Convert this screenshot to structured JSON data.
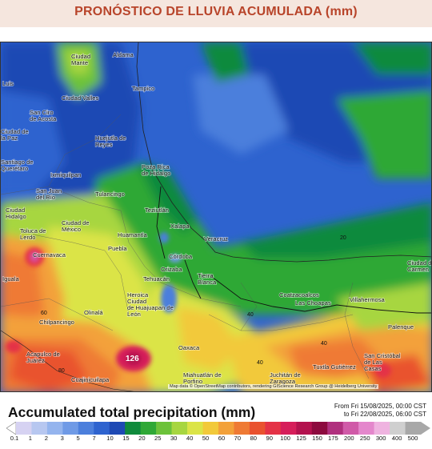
{
  "header": {
    "title": "PRONÓSTICO DE LLUVIA ACUMULADA (mm)"
  },
  "map": {
    "cities": [
      {
        "name": "Aldama"
      },
      {
        "name": "Ciudad Mante"
      },
      {
        "name": "Tampico"
      },
      {
        "name": "Luis"
      },
      {
        "name": "Ciudad Valles"
      },
      {
        "name": "San Ciro de Acosta"
      },
      {
        "name": "Ciudad de la Paz"
      },
      {
        "name": "Huejutla de Reyes"
      },
      {
        "name": "Santiago de Querétaro"
      },
      {
        "name": "Ixmiquilpan"
      },
      {
        "name": "Poza Rica de Hidalgo"
      },
      {
        "name": "San Juan del Río"
      },
      {
        "name": "Tulancingo"
      },
      {
        "name": "Ciudad Hidalgo"
      },
      {
        "name": "Teziutlán"
      },
      {
        "name": "Ciudad de México"
      },
      {
        "name": "Xalapa"
      },
      {
        "name": "Toluca de Lerdo"
      },
      {
        "name": "Huamantla"
      },
      {
        "name": "Veracruz"
      },
      {
        "name": "Cuernavaca"
      },
      {
        "name": "Puebla"
      },
      {
        "name": "Córdoba"
      },
      {
        "name": "Orizaba"
      },
      {
        "name": "Tierra Blanca"
      },
      {
        "name": "Iguala"
      },
      {
        "name": "Tehuacán"
      },
      {
        "name": "Coatzacoalcos"
      },
      {
        "name": "Las Choapas"
      },
      {
        "name": "Ciudad del Carmen"
      },
      {
        "name": "Heroica Ciudad de Huajuapan de León"
      },
      {
        "name": "Villahermosa"
      },
      {
        "name": "Olinalá"
      },
      {
        "name": "Chilpancingo"
      },
      {
        "name": "Palenque"
      },
      {
        "name": "Acapulco de Juárez"
      },
      {
        "name": "Oaxaca"
      },
      {
        "name": "San Cristóbal de Las Casas"
      },
      {
        "name": "Tuxtla Gutiérrez"
      },
      {
        "name": "Cuajinicuilapa"
      },
      {
        "name": "Miahuatlán de Porfirio"
      },
      {
        "name": "Juchitán de Zaragoza"
      }
    ],
    "contour_labels": [
      {
        "text": "20"
      },
      {
        "text": "40"
      },
      {
        "text": "40"
      },
      {
        "text": "40"
      },
      {
        "text": "60"
      },
      {
        "text": "80"
      },
      {
        "text": "126"
      }
    ],
    "attribution": "Map data © OpenStreetMap contributors, rendering GIScience Research Group @ Heidelberg University"
  },
  "legend": {
    "title": "Accumulated total precipitation (mm)",
    "valid_from": "From Fri 15/08/2025, 00:00 CST",
    "valid_to": "to Fri 22/08/2025, 06:00 CST",
    "bins": [
      {
        "label": "0.1",
        "color": "#d6d2f2"
      },
      {
        "label": "1",
        "color": "#b7c7f0"
      },
      {
        "label": "2",
        "color": "#94b4ee"
      },
      {
        "label": "3",
        "color": "#6f9ae6"
      },
      {
        "label": "5",
        "color": "#4c7fdc"
      },
      {
        "label": "7",
        "color": "#2e63cf"
      },
      {
        "label": "10",
        "color": "#1e49b4"
      },
      {
        "label": "15",
        "color": "#0f8a3c"
      },
      {
        "label": "20",
        "color": "#2fa836"
      },
      {
        "label": "25",
        "color": "#6cc23a"
      },
      {
        "label": "30",
        "color": "#a7d640"
      },
      {
        "label": "40",
        "color": "#dbe447"
      },
      {
        "label": "50",
        "color": "#f2c93a"
      },
      {
        "label": "60",
        "color": "#f3a13a"
      },
      {
        "label": "70",
        "color": "#ef7a34"
      },
      {
        "label": "80",
        "color": "#e9522f"
      },
      {
        "label": "90",
        "color": "#e43246"
      },
      {
        "label": "100",
        "color": "#d61e5a"
      },
      {
        "label": "125",
        "color": "#b3124e"
      },
      {
        "label": "150",
        "color": "#8c0a3e"
      },
      {
        "label": "175",
        "color": "#b0307e"
      },
      {
        "label": "200",
        "color": "#d05aa8"
      },
      {
        "label": "250",
        "color": "#e487cc"
      },
      {
        "label": "300",
        "color": "#efb3e0"
      },
      {
        "label": "400",
        "color": "#cfcfcf"
      },
      {
        "label": "500",
        "color": "#a8a8a8"
      }
    ]
  }
}
